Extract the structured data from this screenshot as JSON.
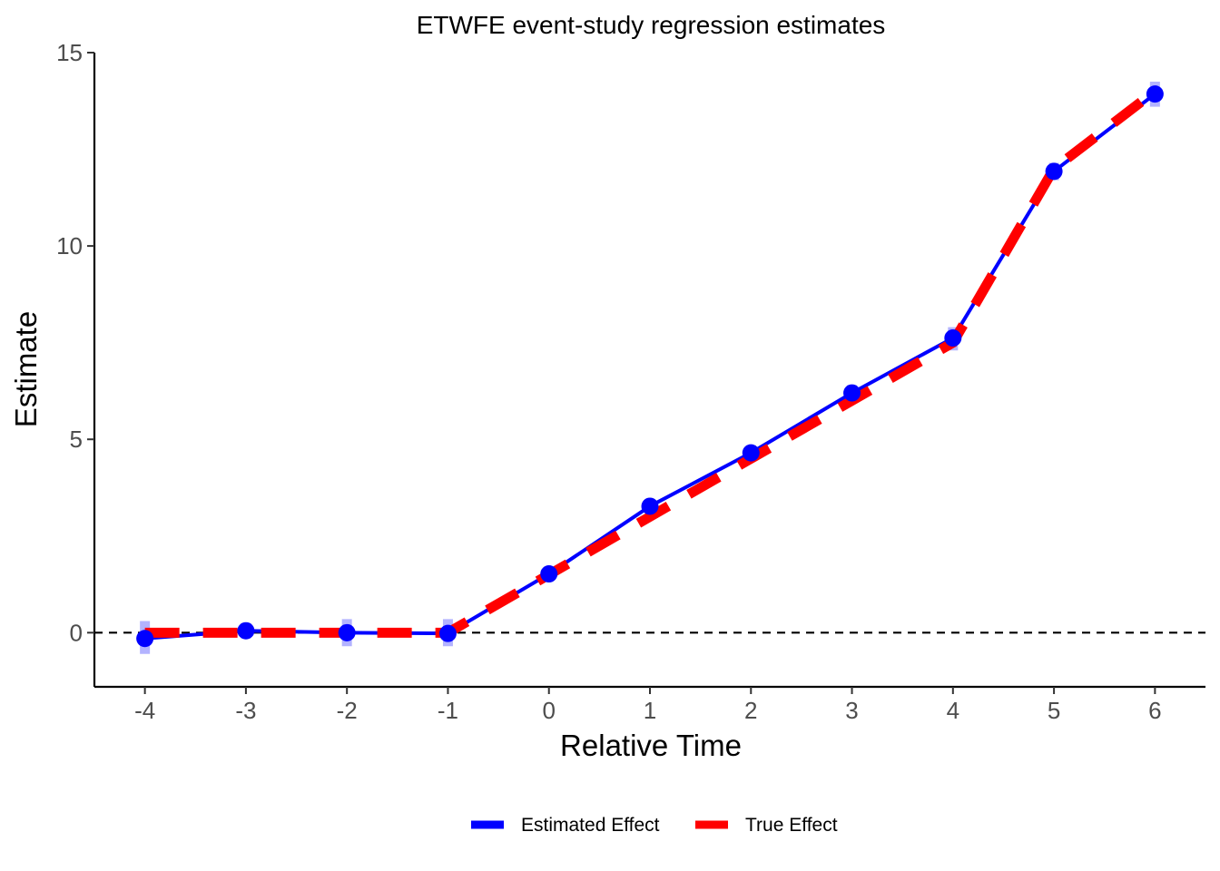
{
  "chart_data": {
    "type": "line",
    "title": "ETWFE event-study regression estimates",
    "xlabel": "Relative Time",
    "ylabel": "Estimate",
    "x": [
      -4,
      -3,
      -2,
      -1,
      0,
      1,
      2,
      3,
      4,
      5,
      6
    ],
    "x_tick_labels": [
      "-4",
      "-3",
      "-2",
      "-1",
      "0",
      "1",
      "2",
      "3",
      "4",
      "5",
      "6"
    ],
    "y_ticks": [
      0,
      5,
      10,
      15
    ],
    "y_tick_labels": [
      "0",
      "5",
      "10",
      "15"
    ],
    "xlim": [
      -4.5,
      6.5
    ],
    "ylim": [
      -1.4,
      15
    ],
    "reference_line": {
      "y": 0,
      "style": "dashed",
      "color": "#000000"
    },
    "grid": false,
    "legend_position": "bottom",
    "series": [
      {
        "name": "Estimated Effect",
        "color": "#0000ff",
        "style": "solid",
        "markers": true,
        "values": [
          -0.15,
          0.05,
          0.0,
          -0.02,
          1.52,
          3.27,
          4.65,
          6.2,
          7.62,
          11.93,
          13.93
        ],
        "ci_lower": [
          -0.55,
          -0.15,
          -0.35,
          -0.35,
          1.35,
          3.05,
          4.45,
          6.0,
          7.3,
          11.7,
          13.6
        ],
        "ci_upper": [
          0.3,
          0.25,
          0.35,
          0.35,
          1.7,
          3.45,
          4.85,
          6.4,
          7.9,
          12.15,
          14.25
        ],
        "ci_color": "#b3b3ff"
      },
      {
        "name": "True Effect",
        "color": "#ff0000",
        "style": "dashed",
        "markers": false,
        "values": [
          0,
          0,
          0,
          0,
          1.5,
          3.0,
          4.5,
          6.0,
          7.5,
          12.0,
          14.0
        ]
      }
    ]
  }
}
